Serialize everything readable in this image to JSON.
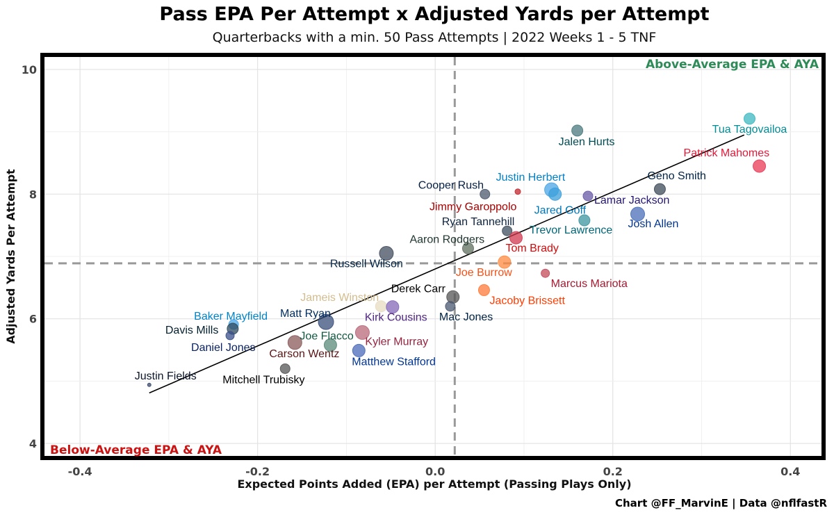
{
  "chart_data": {
    "type": "scatter",
    "title": "Pass EPA Per Attempt x Adjusted Yards per Attempt",
    "subtitle": "Quarterbacks with a min. 50 Pass Attempts | 2022 Weeks 1 - 5 TNF",
    "xlabel": "Expected Points Added (EPA) per Attempt (Passing Plays Only)",
    "ylabel": "Adjusted Yards Per Attempt",
    "xlim": [
      -0.44,
      0.435
    ],
    "ylim": [
      3.8,
      10.2
    ],
    "xticks": [
      {
        "value": -0.4,
        "label": "-0.4"
      },
      {
        "value": -0.2,
        "label": "-0.2"
      },
      {
        "value": 0.0,
        "label": "0.0"
      },
      {
        "value": 0.2,
        "label": "0.2"
      },
      {
        "value": 0.4,
        "label": "0.4"
      }
    ],
    "yticks": [
      {
        "value": 4,
        "label": "4"
      },
      {
        "value": 6,
        "label": "6"
      },
      {
        "value": 8,
        "label": "8"
      },
      {
        "value": 10,
        "label": "10"
      }
    ],
    "grid": true,
    "reference_lines": {
      "x_mean": 0.022,
      "y_mean": 6.89
    },
    "trend_line": {
      "x": [
        -0.322,
        0.348
      ],
      "y": [
        4.81,
        8.95
      ]
    },
    "quadrant_labels": {
      "top_right": "Above-Average EPA & AYA",
      "bottom_left": "Below-Average EPA & AYA"
    },
    "points": [
      {
        "name": "Tua Tagovailoa",
        "x": 0.354,
        "y": 9.21,
        "size": 8,
        "color": "#3BB8C0",
        "label_color": "#008E97",
        "label_dx": 0,
        "label_dy": 20,
        "anchor": "middle"
      },
      {
        "name": "Jalen Hurts",
        "x": 0.16,
        "y": 9.02,
        "size": 8,
        "color": "#4A7A7E",
        "label_color": "#004C54",
        "label_dx": -27,
        "label_dy": 21,
        "anchor": "start"
      },
      {
        "name": "Patrick Mahomes",
        "x": 0.365,
        "y": 8.45,
        "size": 9,
        "color": "#E83A56",
        "label_color": "#E31837",
        "label_dx": -109,
        "label_dy": -14,
        "anchor": "start"
      },
      {
        "name": "Geno Smith",
        "x": 0.253,
        "y": 8.08,
        "size": 8,
        "color": "#3E4B5A",
        "label_color": "#002244",
        "label_dx": -18,
        "label_dy": -14,
        "anchor": "start"
      },
      {
        "name": "Cooper Rush",
        "x": 0.056,
        "y": 8.0,
        "size": 7,
        "color": "#4E5A6E",
        "label_color": "#041E42",
        "label_dx": -96,
        "label_dy": -8,
        "anchor": "start"
      },
      {
        "name": "Jimmy Garoppolo",
        "x": 0.093,
        "y": 8.04,
        "size": 4,
        "color": "#C2272D",
        "label_color": "#AA0000",
        "label_dx": -127,
        "label_dy": 27,
        "anchor": "start"
      },
      {
        "name": "Justin Herbert",
        "x": 0.131,
        "y": 8.07,
        "size": 10,
        "color": "#4AA5E6",
        "label_color": "#0080C6",
        "label_dx": -80,
        "label_dy": -13,
        "anchor": "start"
      },
      {
        "name": "Jared Goff",
        "x": 0.135,
        "y": 8.0,
        "size": 9,
        "color": "#3B9FDA",
        "label_color": "#0076B6",
        "label_dx": -30,
        "label_dy": 28,
        "anchor": "start"
      },
      {
        "name": "Lamar Jackson",
        "x": 0.172,
        "y": 7.97,
        "size": 7,
        "color": "#6A5AA8",
        "label_color": "#241773",
        "label_dx": 9,
        "label_dy": 11,
        "anchor": "start"
      },
      {
        "name": "Josh Allen",
        "x": 0.228,
        "y": 7.68,
        "size": 10,
        "color": "#4A6FB8",
        "label_color": "#00338D",
        "label_dx": -14,
        "label_dy": 19,
        "anchor": "start"
      },
      {
        "name": "Trevor Lawrence",
        "x": 0.168,
        "y": 7.58,
        "size": 8,
        "color": "#3E96A0",
        "label_color": "#006778",
        "label_dx": -79,
        "label_dy": 19,
        "anchor": "start"
      },
      {
        "name": "Ryan Tannehill",
        "x": 0.081,
        "y": 7.41,
        "size": 7,
        "color": "#3E4D5E",
        "label_color": "#0C2340",
        "label_dx": -94,
        "label_dy": -8,
        "anchor": "start"
      },
      {
        "name": "Tom Brady",
        "x": 0.091,
        "y": 7.3,
        "size": 9,
        "color": "#D0384F",
        "label_color": "#D50A0A",
        "label_dx": -15,
        "label_dy": 20,
        "anchor": "start"
      },
      {
        "name": "Aaron Rodgers",
        "x": 0.037,
        "y": 7.13,
        "size": 8,
        "color": "#5F6F5F",
        "label_color": "#203731",
        "label_dx": -84,
        "label_dy": -8,
        "anchor": "start"
      },
      {
        "name": "Russell Wilson",
        "x": -0.055,
        "y": 7.05,
        "size": 10,
        "color": "#414E5E",
        "label_color": "#002244",
        "label_dx": -81,
        "label_dy": 20,
        "anchor": "start"
      },
      {
        "name": "Joe Burrow",
        "x": 0.078,
        "y": 6.91,
        "size": 9,
        "color": "#FF8A3D",
        "label_color": "#FB4F14",
        "label_dx": -70,
        "label_dy": 20,
        "anchor": "start"
      },
      {
        "name": "Marcus Mariota",
        "x": 0.124,
        "y": 6.73,
        "size": 6,
        "color": "#C44A5A",
        "label_color": "#A71930",
        "label_dx": 8,
        "label_dy": 20,
        "anchor": "start"
      },
      {
        "name": "Derek Carr",
        "x": 0.02,
        "y": 6.35,
        "size": 9,
        "color": "#555555",
        "label_color": "#000000",
        "label_dx": -89,
        "label_dy": -7,
        "anchor": "start"
      },
      {
        "name": "Jacoby Brissett",
        "x": 0.055,
        "y": 6.46,
        "size": 8,
        "color": "#FF7A38",
        "label_color": "#FF3C00",
        "label_dx": 8,
        "label_dy": 20,
        "anchor": "start"
      },
      {
        "name": "Jameis Winston",
        "x": -0.061,
        "y": 6.2,
        "size": 8,
        "color": "#E8DCC2",
        "label_color": "#D3BC8D",
        "label_dx": -116,
        "label_dy": -8,
        "anchor": "start"
      },
      {
        "name": "Kirk Cousins",
        "x": -0.048,
        "y": 6.19,
        "size": 9,
        "color": "#8468B8",
        "label_color": "#4F2683",
        "label_dx": -40,
        "label_dy": 20,
        "anchor": "start"
      },
      {
        "name": "Mac Jones",
        "x": 0.017,
        "y": 6.2,
        "size": 7,
        "color": "#4A5870",
        "label_color": "#002244",
        "label_dx": -16,
        "label_dy": 20,
        "anchor": "start"
      },
      {
        "name": "Matt Ryan",
        "x": -0.123,
        "y": 5.95,
        "size": 11,
        "color": "#3A4F7A",
        "label_color": "#002C5F",
        "label_dx": -66,
        "label_dy": -7,
        "anchor": "start"
      },
      {
        "name": "Baker Mayfield",
        "x": -0.227,
        "y": 5.91,
        "size": 7,
        "color": "#4AA5E6",
        "label_color": "#0085CA",
        "label_dx": -57,
        "label_dy": -7,
        "anchor": "start"
      },
      {
        "name": "Davis Mills",
        "x": -0.228,
        "y": 5.84,
        "size": 8,
        "color": "#2E4A5E",
        "label_color": "#03202F",
        "label_dx": -97,
        "label_dy": 7,
        "anchor": "start"
      },
      {
        "name": "Daniel Jones",
        "x": -0.231,
        "y": 5.73,
        "size": 6,
        "color": "#3A4F8A",
        "label_color": "#0B2265",
        "label_dx": -56,
        "label_dy": 22,
        "anchor": "start"
      },
      {
        "name": "Kyler Murray",
        "x": -0.082,
        "y": 5.78,
        "size": 10,
        "color": "#B86A7A",
        "label_color": "#97233F",
        "label_dx": 4,
        "label_dy": 18,
        "anchor": "start"
      },
      {
        "name": "Carson Wentz",
        "x": -0.158,
        "y": 5.62,
        "size": 10,
        "color": "#8A5A5A",
        "label_color": "#5A1414",
        "label_dx": -37,
        "label_dy": 21,
        "anchor": "start"
      },
      {
        "name": "Joe Flacco",
        "x": -0.118,
        "y": 5.58,
        "size": 9,
        "color": "#5A8A7A",
        "label_color": "#125740",
        "label_dx": -44,
        "label_dy": -8,
        "anchor": "start"
      },
      {
        "name": "Matthew Stafford",
        "x": -0.086,
        "y": 5.49,
        "size": 9,
        "color": "#4A6AB8",
        "label_color": "#003594",
        "label_dx": -10,
        "label_dy": 21,
        "anchor": "start"
      },
      {
        "name": "Mitchell Trubisky",
        "x": -0.169,
        "y": 5.2,
        "size": 7,
        "color": "#555555",
        "label_color": "#000000",
        "label_dx": -90,
        "label_dy": 21,
        "anchor": "start"
      },
      {
        "name": "Justin Fields",
        "x": -0.322,
        "y": 4.94,
        "size": 2.5,
        "color": "#3A4A6A",
        "label_color": "#0B162A",
        "label_dx": -21,
        "label_dy": -8,
        "anchor": "start"
      }
    ],
    "caption": "Chart @FF_MarvinE | Data @nflfastR"
  }
}
